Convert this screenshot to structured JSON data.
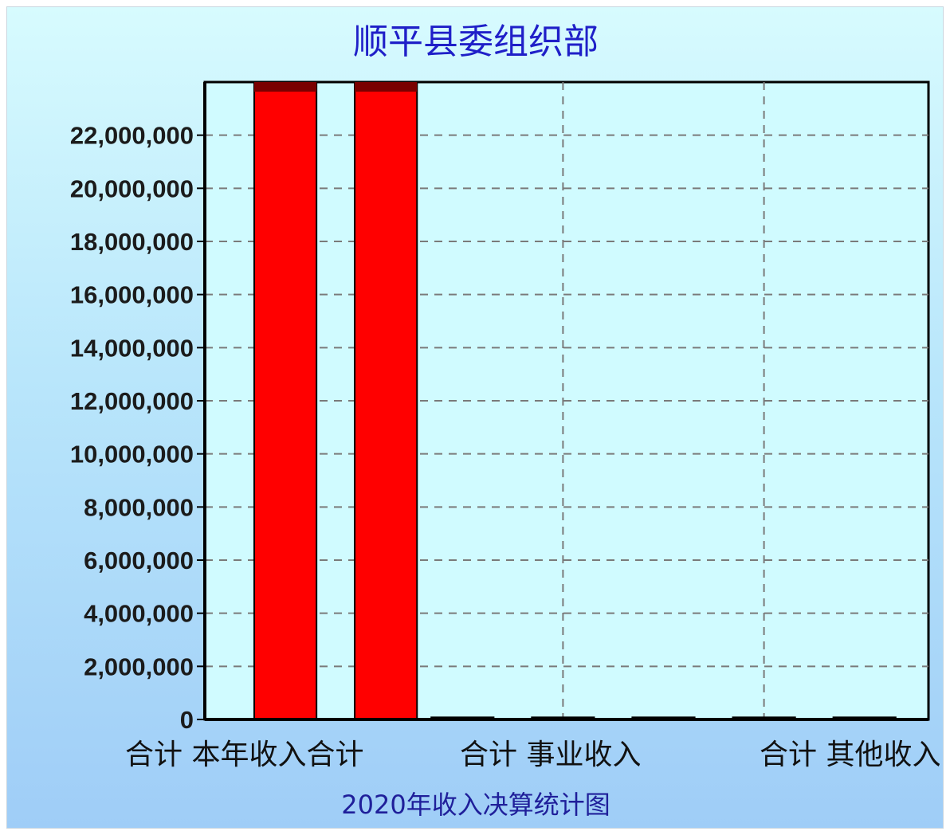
{
  "chart_data": {
    "type": "bar",
    "title": "顺平县委组织部",
    "xlabel": "2020年收入决算统计图",
    "ylabel": "",
    "ylim": [
      0,
      24000000
    ],
    "yticks": [
      0,
      2000000,
      4000000,
      6000000,
      8000000,
      10000000,
      12000000,
      14000000,
      16000000,
      18000000,
      20000000,
      22000000
    ],
    "ytick_labels": [
      "0",
      "2,000,000",
      "4,000,000",
      "6,000,000",
      "8,000,000",
      "10,000,000",
      "12,000,000",
      "14,000,000",
      "16,000,000",
      "18,000,000",
      "20,000,000",
      "22,000,000"
    ],
    "category_labels": [
      "合计 本年收入合计",
      "合计 事业收入",
      "合计 其他收入"
    ],
    "categories": [
      "",
      "",
      "",
      "",
      "",
      "",
      ""
    ],
    "values": [
      24000000,
      24000000,
      80000,
      80000,
      80000,
      80000,
      80000
    ],
    "grid": true,
    "colors": {
      "bar": "#ff0000",
      "bar_top": "#7a0000",
      "grid": "#7a7a7a",
      "axis": "#000000"
    }
  }
}
